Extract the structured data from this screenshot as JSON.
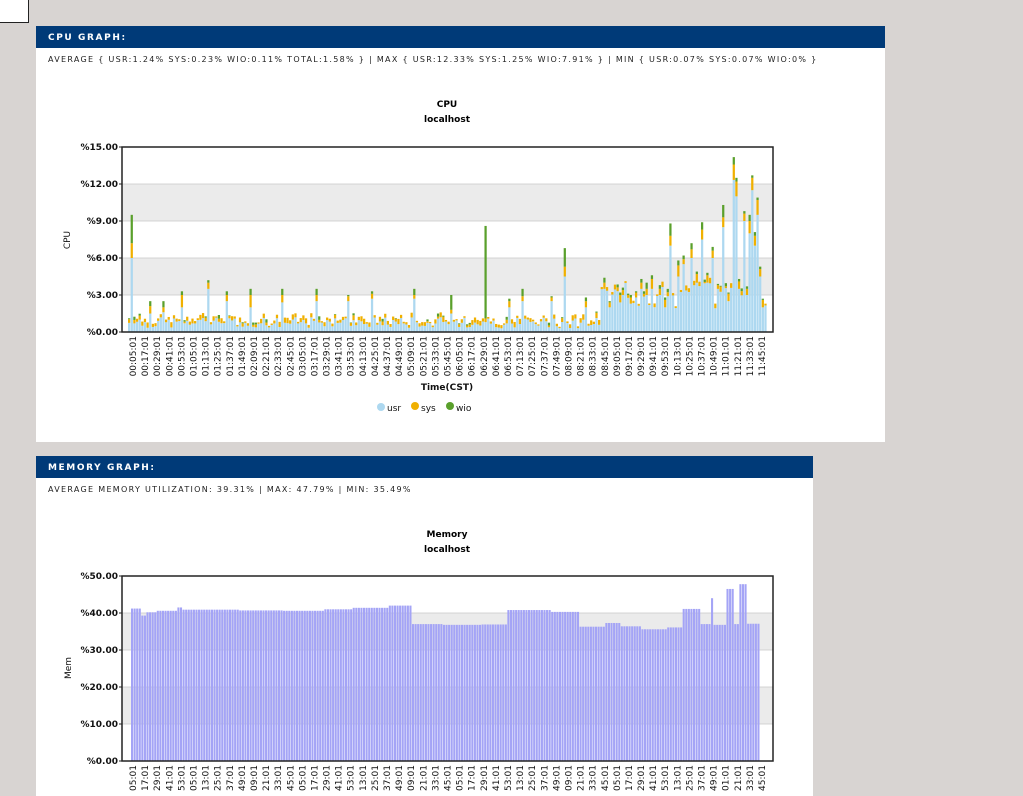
{
  "cpu_panel": {
    "header": "CPU GRAPH:",
    "summary": "AVERAGE { USR:1.24% SYS:0.23% WIO:0.11% TOTAL:1.58% } | MAX { USR:12.33% SYS:1.25% WIO:7.91% } | MIN { USR:0.07% SYS:0.07% WIO:0% }"
  },
  "mem_panel": {
    "header": "MEMORY GRAPH:",
    "summary": "AVERAGE MEMORY UTILIZATION: 39.31% | MAX: 47.79% | MIN: 35.49%"
  },
  "colors": {
    "usr": "#add8f0",
    "sys": "#f0b000",
    "wio": "#5aa02c",
    "mem": "#a4a4f6",
    "band": "#ebebeb"
  },
  "chart_data": [
    {
      "type": "bar",
      "stacked": true,
      "title": "CPU",
      "subtitle": "localhost",
      "xlabel": "Time(CST)",
      "ylabel": "CPU",
      "ylim": [
        0,
        15
      ],
      "yticks": [
        "%0.00",
        "%3.00",
        "%6.00",
        "%9.00",
        "%12.00",
        "%15.00"
      ],
      "x_tick_labels": [
        "00:05:01",
        "00:17:01",
        "00:29:01",
        "00:41:01",
        "00:53:01",
        "01:05:01",
        "01:13:01",
        "01:25:01",
        "01:37:01",
        "01:49:01",
        "02:09:01",
        "02:21:01",
        "02:33:01",
        "02:45:01",
        "03:05:01",
        "03:17:01",
        "03:29:01",
        "03:41:01",
        "03:53:01",
        "04:13:01",
        "04:25:01",
        "04:37:01",
        "04:49:01",
        "05:09:01",
        "05:21:01",
        "05:33:01",
        "05:45:01",
        "06:05:01",
        "06:17:01",
        "06:29:01",
        "06:41:01",
        "06:53:01",
        "07:13:01",
        "07:25:01",
        "07:37:01",
        "07:49:01",
        "08:09:01",
        "08:21:01",
        "08:33:01",
        "08:45:01",
        "09:05:01",
        "09:17:01",
        "09:29:01",
        "09:41:01",
        "09:53:01",
        "10:13:01",
        "10:25:01",
        "10:37:01",
        "10:49:01",
        "11:01:01",
        "11:21:01",
        "11:33:01",
        "11:45:01"
      ],
      "spikes": [
        {
          "i": 1,
          "usr": 6.0,
          "sys": 1.2,
          "wio": 2.3
        },
        {
          "i": 8,
          "usr": 1.5,
          "sys": 0.6,
          "wio": 0.4
        },
        {
          "i": 13,
          "usr": 1.6,
          "sys": 0.4,
          "wio": 0.5
        },
        {
          "i": 20,
          "usr": 2.0,
          "sys": 1.0,
          "wio": 0.3
        },
        {
          "i": 30,
          "usr": 3.5,
          "sys": 0.5,
          "wio": 0.2
        },
        {
          "i": 37,
          "usr": 2.5,
          "sys": 0.5,
          "wio": 0.3
        },
        {
          "i": 46,
          "usr": 2.0,
          "sys": 1.0,
          "wio": 0.5
        },
        {
          "i": 58,
          "usr": 2.4,
          "sys": 0.6,
          "wio": 0.5
        },
        {
          "i": 71,
          "usr": 2.5,
          "sys": 0.5,
          "wio": 0.5
        },
        {
          "i": 83,
          "usr": 2.5,
          "sys": 0.4,
          "wio": 0.1
        },
        {
          "i": 92,
          "usr": 2.7,
          "sys": 0.4,
          "wio": 0.2
        },
        {
          "i": 108,
          "usr": 2.7,
          "sys": 0.3,
          "wio": 0.5
        },
        {
          "i": 122,
          "usr": 1.5,
          "sys": 0.3,
          "wio": 1.2
        },
        {
          "i": 135,
          "usr": 0.8,
          "sys": 0.3,
          "wio": 7.5
        },
        {
          "i": 144,
          "usr": 2.0,
          "sys": 0.5,
          "wio": 0.2
        },
        {
          "i": 149,
          "usr": 2.5,
          "sys": 0.4,
          "wio": 0.6
        },
        {
          "i": 160,
          "usr": 2.5,
          "sys": 0.3,
          "wio": 0.1
        },
        {
          "i": 165,
          "usr": 4.5,
          "sys": 0.8,
          "wio": 1.5
        },
        {
          "i": 173,
          "usr": 2.0,
          "sys": 0.5,
          "wio": 0.3
        },
        {
          "i": 180,
          "usr": 3.5,
          "sys": 0.5,
          "wio": 0.4
        },
        {
          "i": 187,
          "usr": 3.0,
          "sys": 0.4,
          "wio": 0.2
        },
        {
          "i": 196,
          "usr": 3.0,
          "sys": 0.5,
          "wio": 0.5
        },
        {
          "i": 201,
          "usr": 3.0,
          "sys": 0.5,
          "wio": 0.3
        }
      ],
      "high_region": [
        {
          "i": 182,
          "usr": 2.0,
          "sys": 0.4,
          "wio": 0.1
        },
        {
          "i": 186,
          "usr": 2.4,
          "sys": 0.6,
          "wio": 0.2
        },
        {
          "i": 190,
          "usr": 2.3,
          "sys": 0.5,
          "wio": 0.2
        },
        {
          "i": 192,
          "usr": 2.8,
          "sys": 0.4,
          "wio": 0.1
        },
        {
          "i": 194,
          "usr": 3.5,
          "sys": 0.5,
          "wio": 0.3
        },
        {
          "i": 198,
          "usr": 3.5,
          "sys": 0.8,
          "wio": 0.3
        },
        {
          "i": 203,
          "usr": 2.0,
          "sys": 0.6,
          "wio": 0.2
        },
        {
          "i": 205,
          "usr": 7.0,
          "sys": 0.8,
          "wio": 1.0
        },
        {
          "i": 208,
          "usr": 4.5,
          "sys": 0.9,
          "wio": 0.4
        },
        {
          "i": 210,
          "usr": 5.5,
          "sys": 0.4,
          "wio": 0.3
        },
        {
          "i": 213,
          "usr": 6.0,
          "sys": 0.7,
          "wio": 0.5
        },
        {
          "i": 215,
          "usr": 4.0,
          "sys": 0.7,
          "wio": 0.2
        },
        {
          "i": 217,
          "usr": 7.5,
          "sys": 0.8,
          "wio": 0.6
        },
        {
          "i": 219,
          "usr": 4.0,
          "sys": 0.6,
          "wio": 0.2
        },
        {
          "i": 221,
          "usr": 6.0,
          "sys": 0.6,
          "wio": 0.3
        },
        {
          "i": 223,
          "usr": 3.5,
          "sys": 0.3,
          "wio": 0.1
        },
        {
          "i": 225,
          "usr": 8.5,
          "sys": 0.8,
          "wio": 1.0
        },
        {
          "i": 227,
          "usr": 2.5,
          "sys": 0.6,
          "wio": 0.1
        },
        {
          "i": 229,
          "usr": 12.33,
          "sys": 1.25,
          "wio": 0.6
        },
        {
          "i": 230,
          "usr": 11.0,
          "sys": 1.2,
          "wio": 0.3
        },
        {
          "i": 231,
          "usr": 3.5,
          "sys": 0.6,
          "wio": 0.2
        },
        {
          "i": 233,
          "usr": 9.0,
          "sys": 0.6,
          "wio": 0.2
        },
        {
          "i": 234,
          "usr": 3.0,
          "sys": 0.5,
          "wio": 0.2
        },
        {
          "i": 235,
          "usr": 8.0,
          "sys": 1.0,
          "wio": 0.5
        },
        {
          "i": 236,
          "usr": 11.5,
          "sys": 1.0,
          "wio": 0.2
        },
        {
          "i": 237,
          "usr": 7.0,
          "sys": 0.8,
          "wio": 0.3
        },
        {
          "i": 238,
          "usr": 9.5,
          "sys": 1.2,
          "wio": 0.2
        },
        {
          "i": 239,
          "usr": 4.5,
          "sys": 0.6,
          "wio": 0.2
        },
        {
          "i": 240,
          "usr": 2.0,
          "sys": 0.6,
          "wio": 0.1
        }
      ],
      "series": [
        {
          "name": "usr"
        },
        {
          "name": "sys"
        },
        {
          "name": "wio"
        }
      ],
      "legend_position": "bottom-center",
      "grid": true
    },
    {
      "type": "bar",
      "title": "Memory",
      "subtitle": "localhost",
      "ylabel": "Mem",
      "ylim": [
        0,
        50
      ],
      "yticks": [
        "%0.00",
        "%10.00",
        "%20.00",
        "%30.00",
        "%40.00",
        "%50.00"
      ],
      "x_tick_labels": [
        "05:01",
        "17:01",
        "29:01",
        "41:01",
        "53:01",
        "05:01",
        "13:01",
        "25:01",
        "37:01",
        "49:01",
        "09:01",
        "21:01",
        "33:01",
        "45:01",
        "05:01",
        "17:01",
        "29:01",
        "41:01",
        "53:01",
        "13:01",
        "25:01",
        "37:01",
        "49:01",
        "09:01",
        "21:01",
        "33:01",
        "45:01",
        "05:01",
        "17:01",
        "29:01",
        "41:01",
        "53:01",
        "13:01",
        "25:01",
        "37:01",
        "49:01",
        "09:01",
        "21:01",
        "33:01",
        "45:01",
        "05:01",
        "17:01",
        "29:01",
        "41:01",
        "53:01",
        "13:01",
        "25:01",
        "37:01",
        "49:01",
        "01:01",
        "21:01",
        "33:01",
        "45:01"
      ],
      "segments": [
        {
          "from": 0,
          "to": 3,
          "value": 41.2
        },
        {
          "from": 4,
          "to": 5,
          "value": 39.3
        },
        {
          "from": 6,
          "to": 9,
          "value": 40.2
        },
        {
          "from": 10,
          "to": 17,
          "value": 40.6
        },
        {
          "from": 18,
          "to": 19,
          "value": 41.5
        },
        {
          "from": 20,
          "to": 41,
          "value": 40.9
        },
        {
          "from": 42,
          "to": 58,
          "value": 40.7
        },
        {
          "from": 59,
          "to": 74,
          "value": 40.6
        },
        {
          "from": 75,
          "to": 85,
          "value": 41.0
        },
        {
          "from": 86,
          "to": 99,
          "value": 41.4
        },
        {
          "from": 100,
          "to": 108,
          "value": 42.0
        },
        {
          "from": 109,
          "to": 120,
          "value": 37.0
        },
        {
          "from": 121,
          "to": 135,
          "value": 36.8
        },
        {
          "from": 136,
          "to": 145,
          "value": 36.9
        },
        {
          "from": 146,
          "to": 162,
          "value": 40.8
        },
        {
          "from": 163,
          "to": 173,
          "value": 40.3
        },
        {
          "from": 174,
          "to": 183,
          "value": 36.3
        },
        {
          "from": 184,
          "to": 189,
          "value": 37.3
        },
        {
          "from": 190,
          "to": 197,
          "value": 36.4
        },
        {
          "from": 198,
          "to": 207,
          "value": 35.6
        },
        {
          "from": 208,
          "to": 213,
          "value": 36.1
        },
        {
          "from": 214,
          "to": 220,
          "value": 41.1
        },
        {
          "from": 221,
          "to": 224,
          "value": 37.0
        },
        {
          "from": 225,
          "to": 225,
          "value": 44.0
        },
        {
          "from": 226,
          "to": 230,
          "value": 36.8
        },
        {
          "from": 231,
          "to": 233,
          "value": 46.5
        },
        {
          "from": 234,
          "to": 235,
          "value": 37.0
        },
        {
          "from": 236,
          "to": 238,
          "value": 47.79
        },
        {
          "from": 239,
          "to": 243,
          "value": 37.1
        }
      ],
      "grid": true
    }
  ]
}
